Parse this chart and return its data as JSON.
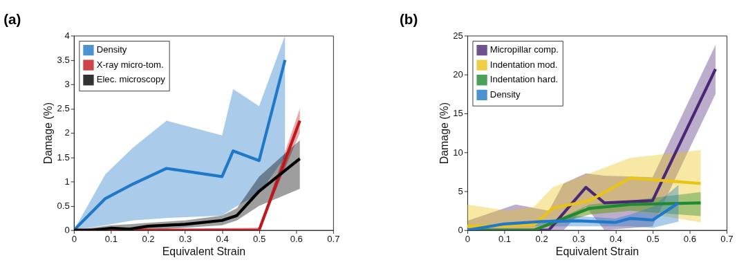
{
  "chart_data": [
    {
      "type": "line",
      "title": "(a)",
      "xlabel": "Equivalent Strain",
      "ylabel": "Damage (%)",
      "xlim": [
        0,
        0.7
      ],
      "xticks": [
        0,
        0.1,
        0.2,
        0.3,
        0.4,
        0.5,
        0.6,
        0.7
      ],
      "ylim": [
        0,
        4
      ],
      "yticks": [
        0,
        0.5,
        1,
        1.5,
        2,
        2.5,
        3,
        3.5,
        4
      ],
      "grid": false,
      "legend": "top left",
      "marker": "none",
      "line_style": "solid",
      "series": [
        {
          "name": "Density",
          "color": "#1f78c8",
          "x": [
            0,
            0.085,
            0.16,
            0.25,
            0.4,
            0.43,
            0.5,
            0.57
          ],
          "values": [
            0,
            0.65,
            0.95,
            1.27,
            1.1,
            1.63,
            1.43,
            3.5
          ],
          "lower": [
            0,
            0.1,
            0.2,
            0.25,
            0.3,
            0.45,
            0.75,
            1.5
          ],
          "upper": [
            0,
            1.15,
            1.7,
            2.25,
            1.95,
            2.9,
            2.55,
            4
          ]
        },
        {
          "name": "X-ray micro-tom.",
          "color": "#c0171c",
          "x": [
            0,
            0.5,
            0.61
          ],
          "values": [
            0,
            0,
            2.25
          ],
          "lower": [
            0,
            0,
            2.0
          ],
          "upper": [
            0,
            0.05,
            2.5
          ]
        },
        {
          "name": "Elec. microscopy",
          "color": "#000000",
          "x": [
            0,
            0.05,
            0.1,
            0.15,
            0.2,
            0.3,
            0.4,
            0.44,
            0.5,
            0.61
          ],
          "values": [
            0,
            0,
            0.04,
            0.02,
            0.08,
            0.12,
            0.2,
            0.3,
            0.8,
            1.47
          ],
          "lower": [
            0,
            0,
            0,
            0,
            0,
            0.05,
            0.1,
            0.2,
            0.5,
            0.85
          ],
          "upper": [
            0,
            0.05,
            0.1,
            0.12,
            0.15,
            0.2,
            0.3,
            0.45,
            1.1,
            1.85
          ]
        }
      ]
    },
    {
      "type": "line",
      "title": "(b)",
      "xlabel": "Equivalent Strain",
      "ylabel": "Damage (%)",
      "xlim": [
        0,
        0.7
      ],
      "xticks": [
        0,
        0.1,
        0.2,
        0.3,
        0.4,
        0.5,
        0.6,
        0.7
      ],
      "ylim": [
        0,
        25
      ],
      "yticks": [
        0,
        5,
        10,
        15,
        20,
        25
      ],
      "grid": false,
      "legend": "top left",
      "marker": "none",
      "line_style": "solid",
      "series": [
        {
          "name": "Micropillar comp.",
          "color": "#4b2875",
          "x": [
            0,
            0.13,
            0.22,
            0.26,
            0.32,
            0.37,
            0.5,
            0.67
          ],
          "values": [
            0,
            0,
            0,
            2.2,
            5.5,
            3.5,
            3.8,
            20.7
          ],
          "lower": [
            0,
            0,
            0,
            0,
            3,
            0,
            0.5,
            17.5
          ],
          "upper": [
            1.2,
            3.3,
            2.5,
            6,
            7.3,
            7,
            6.8,
            23.8
          ]
        },
        {
          "name": "Indentation mod.",
          "color": "#e9c316",
          "x": [
            0,
            0.11,
            0.18,
            0.23,
            0.33,
            0.44,
            0.63
          ],
          "values": [
            0.5,
            0.6,
            0.7,
            2.8,
            3.8,
            6.7,
            6
          ],
          "lower": [
            0,
            0,
            0,
            0.5,
            2,
            2.5,
            1
          ],
          "upper": [
            3.3,
            2.5,
            3,
            5.5,
            7.3,
            9.3,
            10.3
          ]
        },
        {
          "name": "Indentation hard.",
          "color": "#1f8a32",
          "x": [
            0,
            0.18,
            0.33,
            0.44,
            0.63
          ],
          "values": [
            0,
            0,
            2.8,
            3.3,
            3.5
          ],
          "lower": [
            0,
            0,
            2,
            2.5,
            1.8
          ],
          "upper": [
            0,
            0,
            3.3,
            3.8,
            4.9
          ]
        },
        {
          "name": "Density",
          "color": "#1f78c8",
          "x": [
            0,
            0.1,
            0.2,
            0.3,
            0.4,
            0.44,
            0.5,
            0.57
          ],
          "values": [
            0,
            0.8,
            1.1,
            1.2,
            1,
            1.5,
            1.3,
            3.5
          ],
          "lower": [
            0,
            0.5,
            0.5,
            0.5,
            0.5,
            0.5,
            0.3,
            1.1
          ],
          "upper": [
            0,
            0.8,
            1.2,
            1.8,
            1.5,
            2,
            3,
            5.8
          ]
        }
      ]
    }
  ]
}
